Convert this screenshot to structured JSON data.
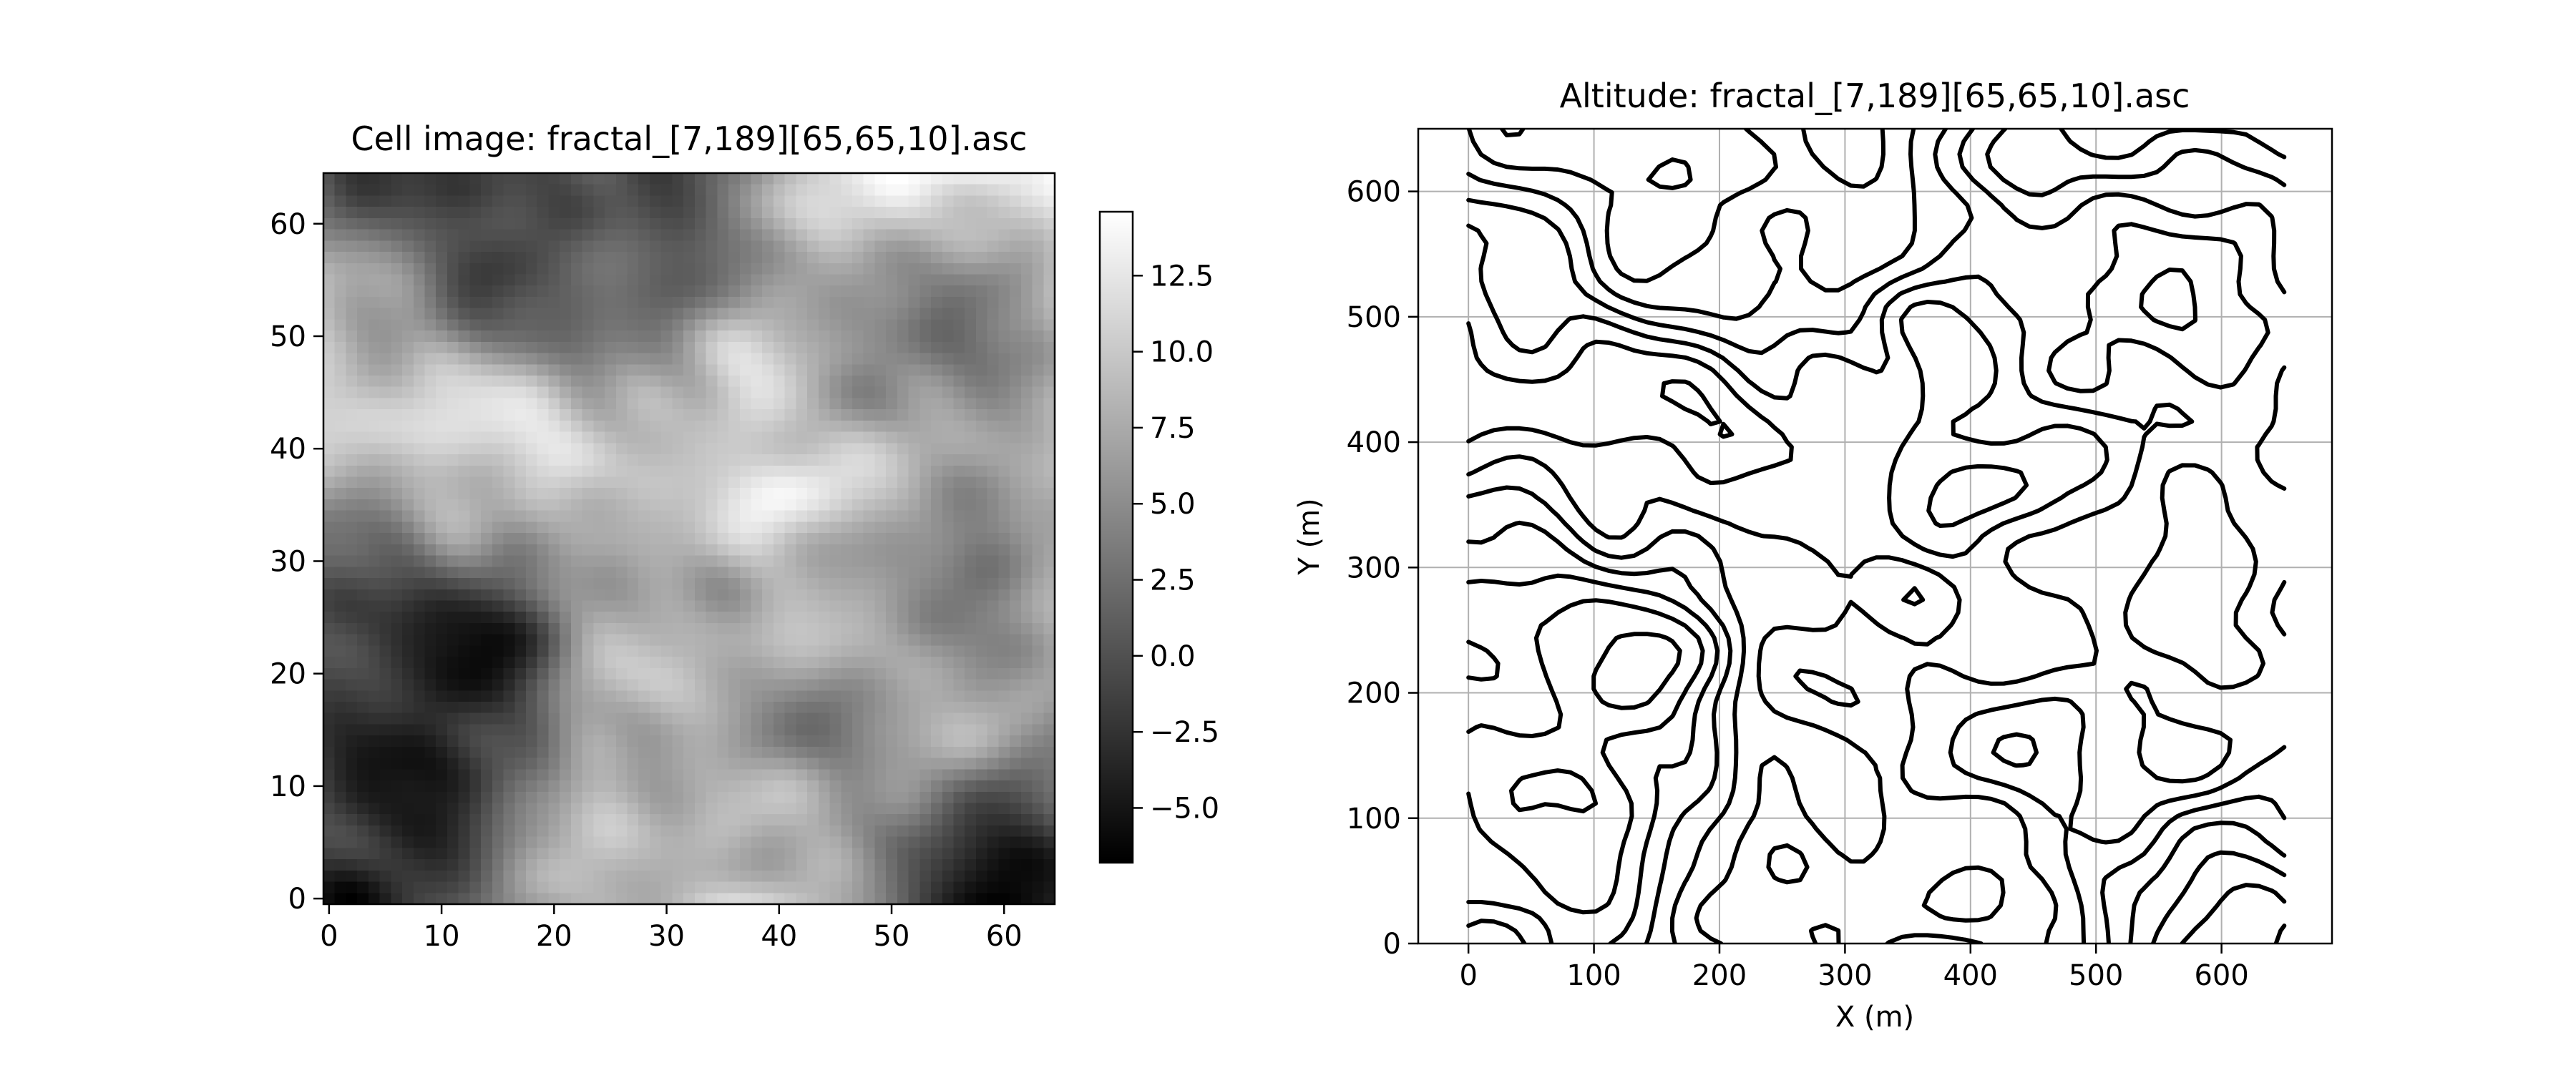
{
  "figure": {
    "background": "#ffffff"
  },
  "chart_data": [
    {
      "type": "heatmap",
      "title": "Cell image: fractal_[7,189][65,65,10].asc",
      "xlabel": "",
      "ylabel": "",
      "xlim": [
        -0.5,
        64.5
      ],
      "ylim": [
        -0.5,
        64.5
      ],
      "x_ticks": [
        0,
        10,
        20,
        30,
        40,
        50,
        60
      ],
      "y_ticks": [
        0,
        10,
        20,
        30,
        40,
        50,
        60
      ],
      "grid": false,
      "colormap": "gray",
      "grid_size": [
        65,
        65
      ],
      "value_range": [
        -6.8,
        14.6
      ],
      "colorbar": {
        "ticks": [
          -5.0,
          -2.5,
          0.0,
          2.5,
          5.0,
          7.5,
          10.0,
          12.5
        ],
        "tick_labels": [
          "−5.0",
          "−2.5",
          "0.0",
          "2.5",
          "5.0",
          "7.5",
          "10.0",
          "12.5"
        ],
        "range": [
          -6.8,
          14.6
        ]
      },
      "features": {
        "bright_peaks": [
          {
            "x": 32,
            "y": 7,
            "value": 14.5
          },
          {
            "x": 8,
            "y": 36,
            "value": 10.5
          },
          {
            "x": 16,
            "y": 47,
            "value": 10.0
          },
          {
            "x": 54,
            "y": 31,
            "value": 9.0
          },
          {
            "x": 46,
            "y": 54,
            "value": 8.0
          }
        ],
        "dark_troughs": [
          {
            "x": 9,
            "y": 13,
            "value": -6.8
          },
          {
            "x": 16,
            "y": 61,
            "value": -3.5
          },
          {
            "x": 33,
            "y": 58,
            "value": -1.5
          },
          {
            "x": 42,
            "y": 32,
            "value": -0.5
          },
          {
            "x": 63,
            "y": 8,
            "value": -2.5
          }
        ]
      }
    },
    {
      "type": "contour",
      "title": "Altitude: fractal_[7,189][65,65,10].asc",
      "xlabel": "X (m)",
      "ylabel": "Y (m)",
      "xlim": [
        -40,
        688
      ],
      "ylim": [
        0,
        650
      ],
      "x_ticks": [
        0,
        100,
        200,
        300,
        400,
        500,
        600
      ],
      "y_ticks": [
        0,
        100,
        200,
        300,
        400,
        500,
        600
      ],
      "grid": true,
      "line_color": "#000000",
      "negative_levels_dashed": true,
      "levels": [
        -5.0,
        -2.5,
        0.0,
        2.5,
        5.0,
        7.5,
        10.0,
        12.5
      ],
      "x_extent": [
        0,
        650
      ],
      "y_extent": [
        0,
        650
      ]
    }
  ]
}
